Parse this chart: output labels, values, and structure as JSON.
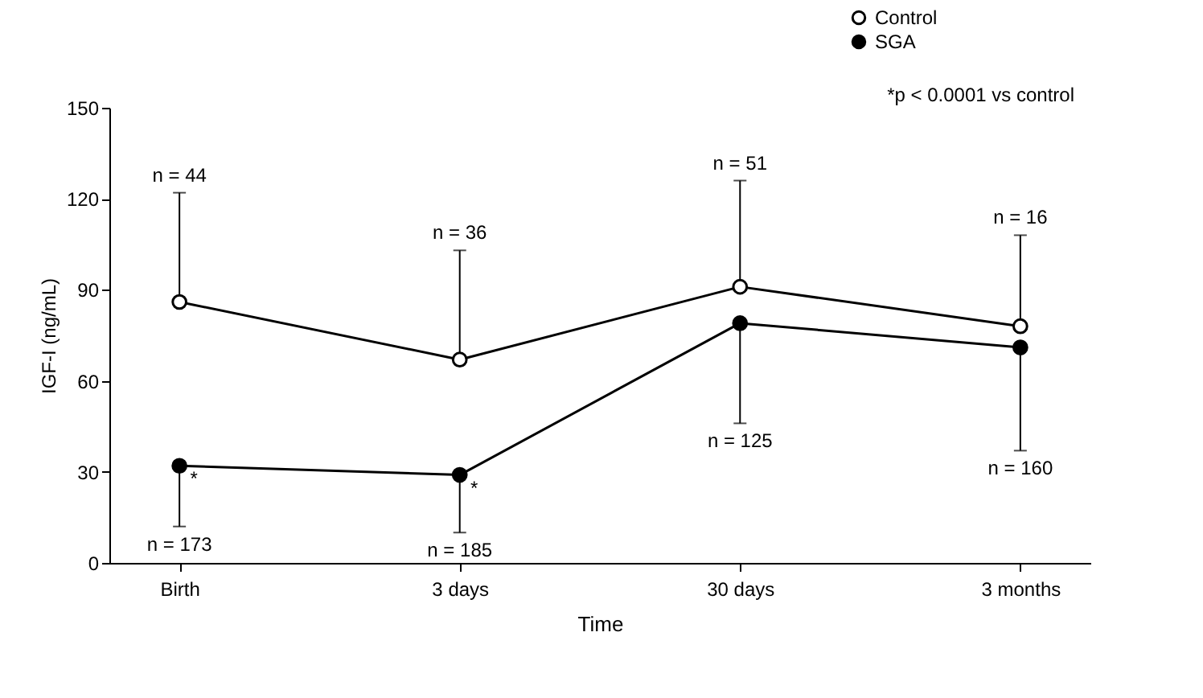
{
  "chart_data": {
    "type": "line",
    "xlabel": "Time",
    "ylabel": "IGF-I (ng/mL)",
    "categories": [
      "Birth",
      "3 days",
      "30 days",
      "3 months"
    ],
    "series": [
      {
        "name": "Control",
        "color": "#ffffff",
        "values": [
          86,
          67,
          91,
          78
        ],
        "errors": [
          [
            86,
            122
          ],
          [
            67,
            103
          ],
          [
            91,
            126
          ],
          [
            78,
            108
          ]
        ]
      },
      {
        "name": "SGA",
        "color": "#000000",
        "values": [
          32,
          29,
          79,
          71
        ],
        "errors": [
          [
            12,
            32
          ],
          [
            10,
            29
          ],
          [
            46,
            79
          ],
          [
            37,
            71
          ]
        ]
      }
    ],
    "ylim": [
      0,
      150
    ],
    "yticks": [
      0,
      30,
      60,
      90,
      120,
      150
    ],
    "legend": "top right",
    "marker": "circle",
    "annotations": [
      "*p < 0.0001 vs control",
      {
        "text": "n = 44",
        "x": "Birth",
        "y": 122
      },
      {
        "text": "n = 36",
        "x": "3 days",
        "y": 103
      },
      {
        "text": "n = 51",
        "x": "30 days",
        "y": 126
      },
      {
        "text": "n = 16",
        "x": "3 months",
        "y": 108
      },
      {
        "text": "n = 173",
        "x": "Birth",
        "y": 12
      },
      {
        "text": "n = 185",
        "x": "3 days",
        "y": 10
      },
      {
        "text": "n = 125",
        "x": "30 days",
        "y": 46
      },
      {
        "text": "n = 160",
        "x": "3 months",
        "y": 37
      },
      {
        "text": "*",
        "x": "Birth",
        "y": 32
      },
      {
        "text": "*",
        "x": "3 days",
        "y": 29
      }
    ]
  }
}
